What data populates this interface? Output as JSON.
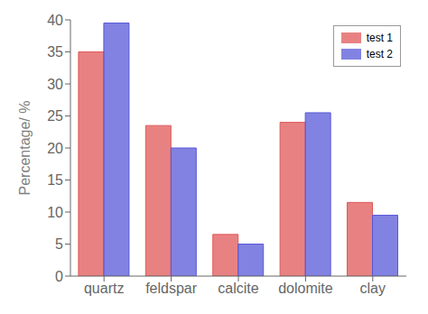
{
  "chart_data": {
    "type": "bar",
    "categories": [
      "quartz",
      "feldspar",
      "calcite",
      "dolomite",
      "clay"
    ],
    "series": [
      {
        "name": "test 1",
        "color": "#e05858",
        "values": [
          35,
          23.5,
          6.5,
          24,
          11.5
        ]
      },
      {
        "name": "test 2",
        "color": "#5858d8",
        "values": [
          39.5,
          20,
          5,
          25.5,
          9.5
        ]
      }
    ],
    "ylabel": "Percentage/ %",
    "ylim": [
      0,
      40
    ],
    "yticks": [
      0,
      5,
      10,
      15,
      20,
      25,
      30,
      35,
      40
    ],
    "grid": false,
    "legend": "upper right"
  }
}
